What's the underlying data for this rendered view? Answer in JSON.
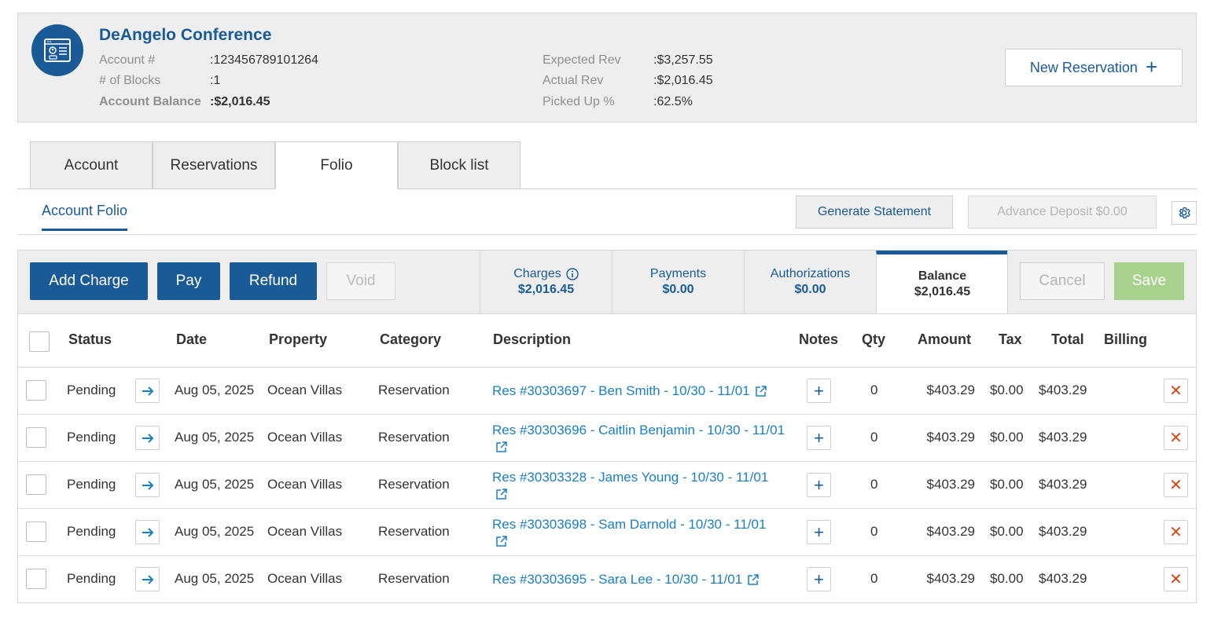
{
  "account": {
    "name": "DeAngelo Conference",
    "labels": [
      "Account #",
      "# of Blocks",
      "Account Balance"
    ],
    "values": [
      ":123456789101264",
      ":1",
      ":$2,016.45"
    ],
    "rev_labels": [
      "Expected Rev",
      "Actual Rev",
      "Picked Up %"
    ],
    "rev_values": [
      ":$3,257.55",
      ":$2,016.45",
      ":62.5%"
    ],
    "new_reservation_label": "New Reservation"
  },
  "tabs": [
    "Account",
    "Reservations",
    "Folio",
    "Block list"
  ],
  "active_tab": "Folio",
  "subtab": "Account Folio",
  "actions": {
    "generate_statement": "Generate Statement",
    "advance_deposit": "Advance Deposit $0.00"
  },
  "toolbar": {
    "add_charge": "Add Charge",
    "pay": "Pay",
    "refund": "Refund",
    "void": "Void",
    "cancel": "Cancel",
    "save": "Save"
  },
  "summary": [
    {
      "label": "Charges",
      "amount": "$2,016.45"
    },
    {
      "label": "Payments",
      "amount": "$0.00"
    },
    {
      "label": "Authorizations",
      "amount": "$0.00"
    },
    {
      "label": "Balance",
      "amount": "$2,016.45"
    }
  ],
  "columns": [
    "Status",
    "Date",
    "Property",
    "Category",
    "Description",
    "Notes",
    "Qty",
    "Amount",
    "Tax",
    "Total",
    "Billing"
  ],
  "rows": [
    {
      "status": "Pending",
      "date": "Aug 05, 2025",
      "property": "Ocean Villas",
      "category": "Reservation",
      "description": "Res #30303697 - Ben Smith - 10/30 - 11/01",
      "qty": "0",
      "amount": "$403.29",
      "tax": "$0.00",
      "total": "$403.29"
    },
    {
      "status": "Pending",
      "date": "Aug 05, 2025",
      "property": "Ocean Villas",
      "category": "Reservation",
      "description": "Res #30303696 - Caitlin Benjamin - 10/30 - 11/01",
      "qty": "0",
      "amount": "$403.29",
      "tax": "$0.00",
      "total": "$403.29"
    },
    {
      "status": "Pending",
      "date": "Aug 05, 2025",
      "property": "Ocean Villas",
      "category": "Reservation",
      "description": "Res #30303328 - James Young - 10/30 - 11/01",
      "qty": "0",
      "amount": "$403.29",
      "tax": "$0.00",
      "total": "$403.29"
    },
    {
      "status": "Pending",
      "date": "Aug 05, 2025",
      "property": "Ocean Villas",
      "category": "Reservation",
      "description": "Res #30303698 - Sam Darnold - 10/30 - 11/01",
      "qty": "0",
      "amount": "$403.29",
      "tax": "$0.00",
      "total": "$403.29"
    },
    {
      "status": "Pending",
      "date": "Aug 05, 2025",
      "property": "Ocean Villas",
      "category": "Reservation",
      "description": "Res #30303695 - Sara Lee - 10/30 - 11/01",
      "qty": "0",
      "amount": "$403.29",
      "tax": "$0.00",
      "total": "$403.29"
    }
  ],
  "colors": {
    "primary": "#1a5a96",
    "link": "#1a7fc1",
    "save": "#a9d18e",
    "delete": "#d04a14"
  },
  "icons": [
    "account-card-icon",
    "plus-icon",
    "gear-icon",
    "info-icon",
    "arrow-right-icon",
    "external-link-icon",
    "close-icon"
  ]
}
